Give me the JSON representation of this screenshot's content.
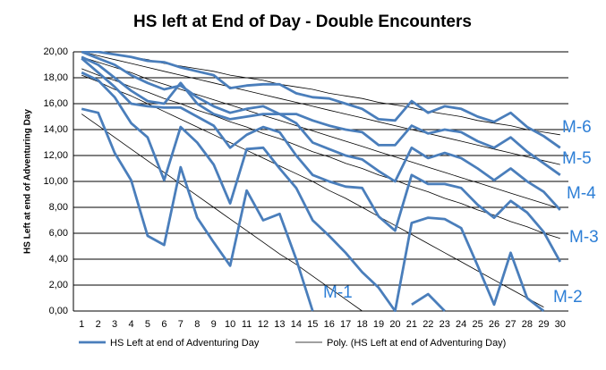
{
  "chart_data": {
    "type": "line",
    "title": "HS left at End of Day - Double Encounters",
    "y_label": "HS Left at end of Adventuring Day",
    "categories": [
      "1",
      "2",
      "3",
      "4",
      "5",
      "6",
      "7",
      "8",
      "9",
      "10",
      "11",
      "12",
      "13",
      "14",
      "15",
      "16",
      "17",
      "18",
      "19",
      "20",
      "21",
      "22",
      "23",
      "24",
      "25",
      "26",
      "27",
      "28",
      "29",
      "30"
    ],
    "ylim": [
      0,
      20
    ],
    "yticks": [
      {
        "value": 0,
        "label": "0,00"
      },
      {
        "value": 2,
        "label": "2,00"
      },
      {
        "value": 4,
        "label": "4,00"
      },
      {
        "value": 6,
        "label": "6,00"
      },
      {
        "value": 8,
        "label": "8,00"
      },
      {
        "value": 10,
        "label": "10,00"
      },
      {
        "value": 12,
        "label": "12,00"
      },
      {
        "value": 14,
        "label": "14,00"
      },
      {
        "value": 16,
        "label": "16,00"
      },
      {
        "value": 18,
        "label": "18,00"
      },
      {
        "value": 20,
        "label": "20,00"
      }
    ],
    "grid": true,
    "legend": [
      "HS Left at end of Adventuring Day",
      "Poly. (HS Left at end of Adventuring Day)"
    ],
    "color": "#4a7ebb",
    "trend_color": "#000000",
    "series": [
      {
        "name": "M-1",
        "values": [
          15.6,
          15.3,
          12.2,
          10.1,
          5.8,
          5.1,
          11.1,
          7.2,
          5.3,
          3.5,
          9.3,
          7.0,
          7.5,
          4.0,
          0,
          null,
          null,
          null,
          null,
          null,
          0.5,
          1.3,
          0,
          null,
          null,
          null,
          null,
          null,
          null,
          null
        ],
        "trend": [
          15.2,
          14.3,
          13.4,
          12.5,
          11.6,
          10.7,
          9.8,
          8.9,
          8.0,
          7.1,
          6.2,
          5.3,
          4.4,
          3.6,
          2.7,
          1.8,
          0.9,
          0.0,
          null,
          null,
          null,
          null,
          null,
          null,
          null,
          null,
          null,
          null,
          null,
          null
        ]
      },
      {
        "name": "M-2",
        "values": [
          18.4,
          17.8,
          16.5,
          14.5,
          13.4,
          10.1,
          14.2,
          13.0,
          11.3,
          8.3,
          12.5,
          12.6,
          11.0,
          9.5,
          7.0,
          5.8,
          4.5,
          3.0,
          1.8,
          0,
          6.8,
          7.2,
          7.1,
          6.4,
          3.5,
          0.5,
          4.5,
          1.0,
          0,
          null
        ],
        "trend": [
          18.2,
          17.7,
          17.1,
          16.6,
          16.0,
          15.4,
          14.8,
          14.2,
          13.6,
          13.0,
          12.4,
          11.8,
          11.2,
          10.6,
          10.0,
          9.3,
          8.7,
          8.0,
          7.3,
          6.6,
          5.9,
          5.2,
          4.5,
          3.8,
          3.1,
          2.4,
          1.7,
          1.0,
          0.3,
          null
        ]
      },
      {
        "name": "M-3",
        "values": [
          19.5,
          18.4,
          17.3,
          16.0,
          15.8,
          15.7,
          15.7,
          15.0,
          14.3,
          12.6,
          13.6,
          14.2,
          13.8,
          12.0,
          10.5,
          10.0,
          9.6,
          9.5,
          7.3,
          6.2,
          10.5,
          9.8,
          9.8,
          9.5,
          8.2,
          7.2,
          8.5,
          7.6,
          6.1,
          3.8
        ],
        "trend": [
          18.7,
          18.2,
          17.8,
          17.3,
          16.9,
          16.4,
          16.0,
          15.5,
          15.1,
          14.6,
          14.2,
          13.7,
          13.3,
          12.8,
          12.3,
          11.9,
          11.4,
          11.0,
          10.5,
          10.1,
          9.6,
          9.2,
          8.7,
          8.3,
          7.8,
          7.4,
          6.9,
          6.5,
          6.0,
          5.6
        ]
      },
      {
        "name": "M-4",
        "values": [
          19.6,
          19.0,
          18.0,
          17.0,
          16.2,
          16.0,
          17.6,
          16.0,
          15.2,
          14.8,
          15.0,
          15.2,
          15.2,
          14.5,
          13.0,
          12.5,
          12.0,
          11.7,
          10.8,
          10.0,
          12.6,
          11.8,
          12.2,
          11.8,
          11.0,
          10.1,
          11.0,
          10.0,
          9.2,
          7.8
        ],
        "trend": [
          19.6,
          19.2,
          18.8,
          18.4,
          17.9,
          17.5,
          17.1,
          16.7,
          16.3,
          15.9,
          15.5,
          15.1,
          14.7,
          14.3,
          13.9,
          13.5,
          13.1,
          12.7,
          12.3,
          11.9,
          11.5,
          11.1,
          10.7,
          10.3,
          9.9,
          9.5,
          9.1,
          8.7,
          8.3,
          7.9
        ]
      },
      {
        "name": "M-5",
        "values": [
          20,
          19.5,
          19.0,
          18.2,
          17.6,
          17.1,
          17.4,
          16.5,
          15.8,
          15.3,
          15.6,
          15.8,
          15.2,
          15.2,
          14.7,
          14.3,
          14.0,
          13.8,
          12.8,
          12.8,
          14.3,
          13.7,
          14.0,
          13.8,
          13.1,
          12.6,
          13.4,
          12.3,
          11.4,
          10.5
        ],
        "trend": [
          20.0,
          19.7,
          19.4,
          19.1,
          18.8,
          18.5,
          18.2,
          17.9,
          17.6,
          17.3,
          17.0,
          16.7,
          16.4,
          16.1,
          15.8,
          15.5,
          15.2,
          14.9,
          14.6,
          14.3,
          14.0,
          13.7,
          13.4,
          13.1,
          12.8,
          12.5,
          12.2,
          11.9,
          11.6,
          11.3
        ]
      },
      {
        "name": "M-6",
        "values": [
          20,
          20,
          19.8,
          19.6,
          19.3,
          19.2,
          18.8,
          18.5,
          18.2,
          17.2,
          17.4,
          17.5,
          17.5,
          16.8,
          16.5,
          16.4,
          16.0,
          15.6,
          14.8,
          14.7,
          16.2,
          15.3,
          15.8,
          15.6,
          15.0,
          14.6,
          15.3,
          14.2,
          13.5,
          12.6
        ],
        "trend": [
          20.0,
          20.0,
          19.8,
          19.6,
          19.4,
          19.1,
          18.9,
          18.7,
          18.5,
          18.2,
          18.0,
          17.8,
          17.5,
          17.3,
          17.1,
          16.8,
          16.6,
          16.4,
          16.1,
          15.9,
          15.7,
          15.4,
          15.2,
          15.0,
          14.7,
          14.5,
          14.3,
          14.0,
          13.8,
          13.6
        ]
      }
    ]
  }
}
